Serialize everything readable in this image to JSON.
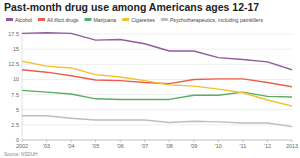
{
  "chart_data": {
    "type": "line",
    "title": "Past-month drug use among Americans ages 12-17",
    "source": "Source: NSDUH",
    "x": [
      2002,
      2003,
      2004,
      2005,
      2006,
      2007,
      2008,
      2009,
      2010,
      2011,
      2012,
      2013
    ],
    "xlim": [
      2002,
      2013
    ],
    "xticks": [
      {
        "value": 2002,
        "label": "2002"
      },
      {
        "value": 2003,
        "label": "'03"
      },
      {
        "value": 2004,
        "label": "'04"
      },
      {
        "value": 2005,
        "label": "'05"
      },
      {
        "value": 2006,
        "label": "'06"
      },
      {
        "value": 2007,
        "label": "'07"
      },
      {
        "value": 2008,
        "label": "'08"
      },
      {
        "value": 2009,
        "label": "'09"
      },
      {
        "value": 2010,
        "label": "'10"
      },
      {
        "value": 2011,
        "label": "'11"
      },
      {
        "value": 2012,
        "label": "'12"
      },
      {
        "value": 2013,
        "label": "2013"
      }
    ],
    "ylim": [
      0,
      18
    ],
    "yticks": [
      0,
      2.5,
      5,
      7.5,
      10,
      12.5,
      15,
      17.5
    ],
    "grid": true,
    "legend": "top",
    "series": [
      {
        "name": "Alcohol",
        "color": "#8e5c9e",
        "values": [
          17.6,
          17.7,
          17.6,
          16.5,
          16.6,
          15.9,
          14.7,
          14.7,
          13.6,
          13.3,
          12.9,
          11.6
        ]
      },
      {
        "name": "All illicit drugs",
        "color": "#e8604c",
        "values": [
          11.6,
          11.2,
          10.6,
          9.9,
          9.8,
          9.5,
          9.3,
          10.0,
          10.1,
          10.1,
          9.5,
          8.8
        ]
      },
      {
        "name": "Marijuana",
        "color": "#5aae61",
        "values": [
          8.2,
          7.9,
          7.6,
          6.8,
          6.7,
          6.7,
          6.7,
          7.4,
          7.4,
          7.9,
          7.2,
          7.1
        ]
      },
      {
        "name": "Cigarettes",
        "color": "#f2c12e",
        "values": [
          13.0,
          12.2,
          11.9,
          10.8,
          10.4,
          9.8,
          9.1,
          8.9,
          8.4,
          7.8,
          6.6,
          5.6
        ]
      },
      {
        "name": "Psychotherapeutics, including painkillers",
        "color": "#bdbdbd",
        "values": [
          4.0,
          4.0,
          3.6,
          3.3,
          3.3,
          3.3,
          2.9,
          3.1,
          3.0,
          2.8,
          2.8,
          2.2
        ]
      }
    ]
  }
}
